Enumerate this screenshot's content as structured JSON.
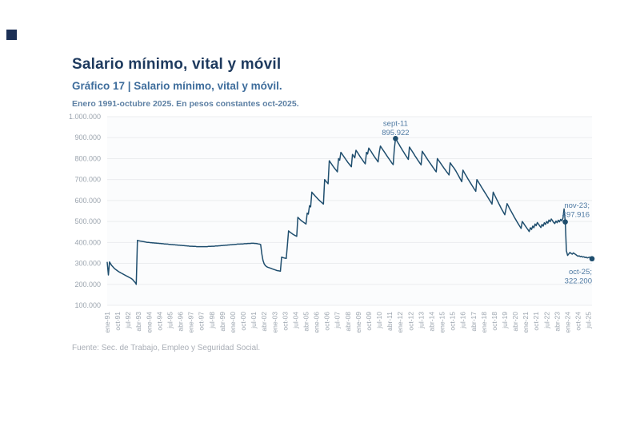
{
  "header": {
    "title": "Salario mínimo, vital y móvil",
    "subtitle": "Gráfico 17 | Salario mínimo, vital y móvil.",
    "caption": "Enero 1991-octubre 2025. En pesos constantes oct-2025."
  },
  "footer": {
    "source": "Fuente: Sec. de Trabajo, Empleo y Seguridad Social."
  },
  "colors": {
    "title": "#1e3a5e",
    "subtitle": "#3e6d9c",
    "caption": "#5d80a4",
    "line": "#1f4e6e",
    "grid": "#ebedef",
    "axis_text": "#9ba4ae",
    "annotation": "#4f7aa3",
    "footer": "#a9aeb6",
    "logo": "#1b2f55",
    "plot_bg": "#fbfcfd"
  },
  "chart_data": {
    "type": "line",
    "title": "Salario mínimo, vital y móvil",
    "xlabel": "",
    "ylabel": "",
    "ylim": [
      100000,
      1000000
    ],
    "y_tick_step": 100000,
    "grid": "horizontal",
    "legend": "none",
    "x_months_start": "ene-91",
    "x_months_end": "oct-25",
    "x_tick_every_months": 9,
    "x_tick_labels": [
      "ene-91",
      "oct-91",
      "jul-92",
      "abr-93",
      "ene-94",
      "oct-94",
      "jul-95",
      "abr-96",
      "ene-97",
      "oct-97",
      "jul-98",
      "abr-99",
      "ene-00",
      "oct-00",
      "jul-01",
      "abr-02",
      "ene-03",
      "oct-03",
      "jul-04",
      "abr-05",
      "ene-06",
      "oct-06",
      "jul-07",
      "abr-08",
      "ene-09",
      "oct-09",
      "jul-10",
      "abr-11",
      "ene-12",
      "oct-12",
      "jul-13",
      "abr-14",
      "ene-15",
      "oct-15",
      "jul-16",
      "abr-17",
      "ene-18",
      "oct-18",
      "jul-19",
      "abr-20",
      "ene-21",
      "oct-21",
      "jul-22",
      "abr-23",
      "ene-24",
      "oct-24",
      "jul-25"
    ],
    "y_tick_labels": [
      "1.000.000",
      "900.000",
      "800.000",
      "700.000",
      "600.000",
      "500.000",
      "400.000",
      "300.000",
      "200.000",
      "100.000"
    ],
    "series": [
      {
        "name": "Salario mínimo, vital y móvil (pesos constantes oct-2025)",
        "values": [
          305000,
          245000,
          307000,
          297000,
          289000,
          283000,
          277000,
          272000,
          268000,
          264000,
          260000,
          257000,
          254000,
          251000,
          248000,
          245000,
          242000,
          239000,
          236000,
          233000,
          230000,
          227000,
          222000,
          215000,
          209000,
          200000,
          410000,
          408000,
          407000,
          406000,
          405000,
          404000,
          403000,
          402000,
          401000,
          400000,
          400000,
          399000,
          399000,
          398000,
          398000,
          397000,
          397000,
          396000,
          396000,
          395000,
          395000,
          394000,
          394000,
          393000,
          393000,
          392000,
          392000,
          391000,
          391000,
          390000,
          390000,
          389000,
          389000,
          388000,
          388000,
          387000,
          387000,
          386000,
          386000,
          385000,
          385000,
          384000,
          384000,
          383000,
          383000,
          382000,
          382000,
          382000,
          381000,
          381000,
          381000,
          380000,
          380000,
          380000,
          380000,
          380000,
          380000,
          380000,
          380000,
          380000,
          380000,
          381000,
          381000,
          381000,
          382000,
          382000,
          382000,
          383000,
          383000,
          383000,
          384000,
          384000,
          385000,
          385000,
          386000,
          386000,
          387000,
          387000,
          388000,
          388000,
          389000,
          389000,
          390000,
          390000,
          391000,
          391000,
          392000,
          392000,
          392000,
          393000,
          393000,
          393000,
          394000,
          394000,
          394000,
          395000,
          395000,
          395000,
          396000,
          396000,
          396000,
          395000,
          395000,
          394000,
          393000,
          392000,
          390000,
          345000,
          315000,
          298000,
          290000,
          285000,
          282000,
          280000,
          278000,
          276000,
          274000,
          272000,
          270000,
          268000,
          266000,
          265000,
          264000,
          263000,
          330000,
          328000,
          326000,
          325000,
          324000,
          390000,
          455000,
          450000,
          446000,
          442000,
          438000,
          435000,
          432000,
          429000,
          520000,
          514000,
          509000,
          504000,
          500000,
          496000,
          492000,
          488000,
          540000,
          535000,
          575000,
          570000,
          640000,
          633000,
          627000,
          621000,
          615000,
          609000,
          603000,
          598000,
          593000,
          588000,
          583000,
          700000,
          693000,
          686000,
          680000,
          790000,
          782000,
          774000,
          766000,
          758000,
          751000,
          744000,
          737000,
          800000,
          792000,
          830000,
          822000,
          814000,
          806000,
          798000,
          790000,
          782000,
          775000,
          768000,
          761000,
          820000,
          812000,
          804000,
          840000,
          832000,
          823000,
          814000,
          806000,
          798000,
          790000,
          782000,
          775000,
          830000,
          822000,
          850000,
          842000,
          834000,
          825000,
          816000,
          808000,
          800000,
          792000,
          784000,
          830000,
          860000,
          851000,
          843000,
          835000,
          827000,
          818000,
          810000,
          802000,
          794000,
          786000,
          778000,
          771000,
          845000,
          895922,
          886000,
          877000,
          868000,
          858000,
          849000,
          840000,
          831000,
          822000,
          813000,
          805000,
          796000,
          855000,
          846000,
          838000,
          829000,
          820000,
          811000,
          803000,
          794000,
          786000,
          778000,
          770000,
          835000,
          826000,
          818000,
          809000,
          801000,
          792000,
          784000,
          776000,
          768000,
          760000,
          752000,
          744000,
          737000,
          800000,
          792000,
          784000,
          776000,
          768000,
          760000,
          752000,
          745000,
          737000,
          730000,
          722000,
          780000,
          772000,
          764000,
          757000,
          749000,
          740000,
          730000,
          720000,
          710000,
          700000,
          690000,
          745000,
          735000,
          725000,
          716000,
          706000,
          697000,
          688000,
          679000,
          670000,
          661000,
          653000,
          644000,
          700000,
          691000,
          682000,
          673000,
          664000,
          655000,
          646000,
          637000,
          628000,
          619000,
          610000,
          601000,
          592000,
          583000,
          640000,
          629000,
          617000,
          606000,
          595000,
          584000,
          573000,
          562000,
          552000,
          542000,
          532000,
          560000,
          585000,
          574000,
          563000,
          553000,
          543000,
          533000,
          523000,
          513000,
          504000,
          494000,
          485000,
          476000,
          467000,
          500000,
          492000,
          484000,
          476000,
          468000,
          460000,
          452000,
          470000,
          462000,
          478000,
          470000,
          488000,
          480000,
          495000,
          487000,
          479000,
          471000,
          486000,
          478000,
          494000,
          486000,
          500000,
          492000,
          507000,
          499000,
          512000,
          504000,
          496000,
          490000,
          502000,
          494000,
          506000,
          498000,
          510000,
          503000,
          516000,
          560000,
          497916,
          360000,
          338000,
          345000,
          352000,
          348000,
          344000,
          350000,
          346000,
          342000,
          338000,
          334000,
          336000,
          332000,
          334000,
          330000,
          332000,
          328000,
          330000,
          326000,
          328000,
          330000,
          326000,
          322200
        ]
      }
    ],
    "annotations": [
      {
        "index": 248,
        "value": 895922,
        "lines": [
          "sept-11",
          "895.922"
        ],
        "placement": "above"
      },
      {
        "index": 394,
        "value": 497916,
        "lines": [
          "nov-23;",
          "497.916"
        ],
        "placement": "above-right"
      },
      {
        "index": 417,
        "value": 322200,
        "lines": [
          "oct-25;",
          "322.200"
        ],
        "placement": "below"
      }
    ]
  }
}
